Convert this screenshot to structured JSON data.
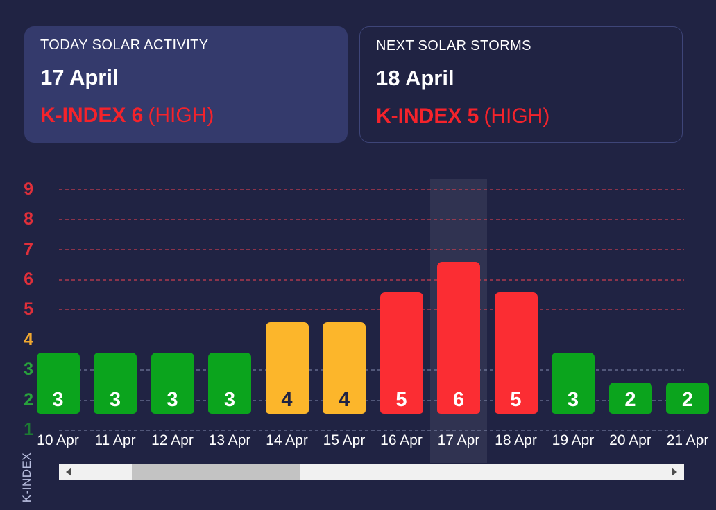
{
  "theme": {
    "background": "#202343",
    "card_background": "#343a6c",
    "card_border": "#3e4578",
    "accent_red": "#f5232b",
    "text_white": "#ffffff"
  },
  "cards": [
    {
      "title": "TODAY SOLAR ACTIVITY",
      "date": "17 April",
      "kindex_label": "K-INDEX 6",
      "severity": "(HIGH)"
    },
    {
      "title": "NEXT SOLAR STORMS",
      "date": "18 April",
      "kindex_label": "K-INDEX 5",
      "severity": "(HIGH)"
    }
  ],
  "chart_data": {
    "type": "bar",
    "title": "",
    "xlabel": "",
    "ylabel": "K-INDEX",
    "categories": [
      "10 Apr",
      "11 Apr",
      "12 Apr",
      "13 Apr",
      "14 Apr",
      "15 Apr",
      "16 Apr",
      "17 Apr",
      "18 Apr",
      "19 Apr",
      "20 Apr",
      "21 Apr"
    ],
    "values": [
      3,
      3,
      3,
      3,
      4,
      4,
      5,
      6,
      5,
      3,
      2,
      2
    ],
    "highlighted_category": "17 Apr",
    "yticks": [
      1,
      2,
      3,
      4,
      5,
      6,
      7,
      8,
      9
    ],
    "ylim": [
      1,
      9
    ],
    "grid": true,
    "legend": false,
    "bar_colors": {
      "low": "#0ba41d",
      "moderate": "#fcb62b",
      "high": "#fb2d33"
    },
    "bar_label_colors": {
      "low": "#ffffff",
      "moderate": "#202343",
      "high": "#ffffff"
    },
    "tick_colors": {
      "low": "#28a33c",
      "moderate": "#f0a830",
      "high": "#e02f3a"
    },
    "tick_color_overrides": {
      "1": "#1d7c33"
    },
    "grid_colors": {
      "low": "rgba(165,175,210,0.38)",
      "moderate": "rgba(240,185,90,0.55)",
      "high": "rgba(244,67,80,0.5)"
    },
    "highlight_color": "rgba(244,246,255,0.08)"
  },
  "scrollbar": {
    "track_color": "#f1f1f1",
    "thumb_color": "#c3c3c3",
    "arrow_color": "#4d4d4d"
  }
}
